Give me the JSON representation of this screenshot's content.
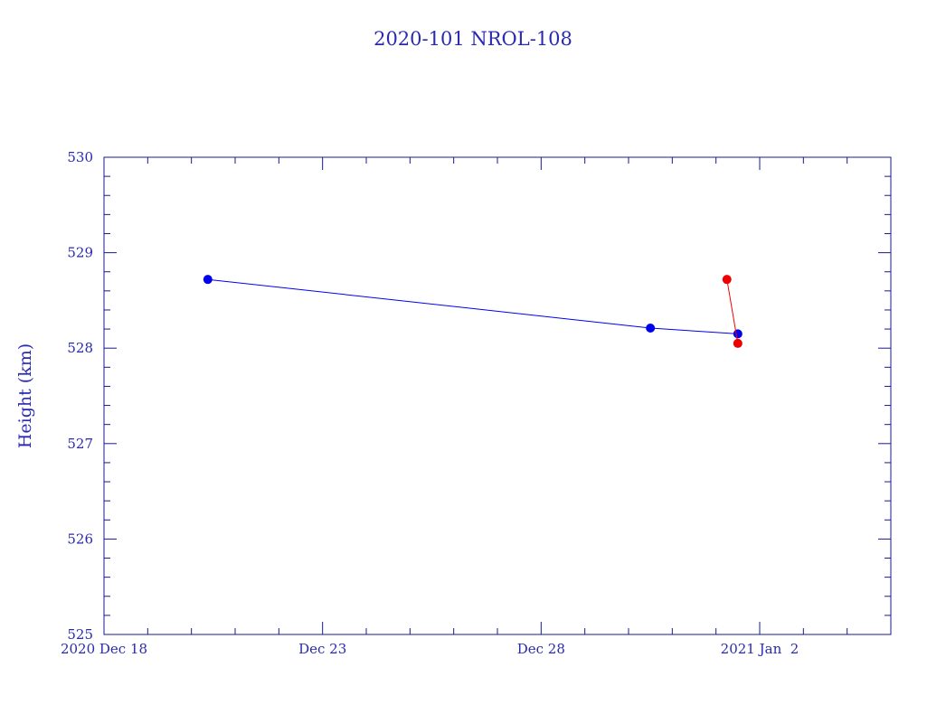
{
  "chart_data": {
    "type": "line",
    "title": "2020-101 NROL-108",
    "ylabel": "Height (km)",
    "xlabel": "",
    "x_axis_type": "date",
    "xlim": [
      "2020-12-18",
      "2021-01-05"
    ],
    "ylim": [
      525,
      530
    ],
    "y_ticks": [
      525,
      526,
      527,
      528,
      529,
      530
    ],
    "y_tick_labels": [
      "525",
      "526",
      "527",
      "528",
      "529",
      "530"
    ],
    "x_ticks": [
      "2020-12-18",
      "2020-12-23",
      "2020-12-28",
      "2021-01-02"
    ],
    "x_tick_labels": [
      "2020 Dec 18",
      "Dec 23",
      "Dec 28",
      "2021 Jan  2"
    ],
    "grid": false,
    "legend": "none",
    "series": [
      {
        "color": "#0000ee",
        "points": [
          {
            "x": "2020-12-20T09:00",
            "y": 528.72
          },
          {
            "x": "2020-12-30T12:00",
            "y": 528.21
          },
          {
            "x": "2021-01-01T12:00",
            "y": 528.15
          }
        ]
      },
      {
        "color": "#ee0000",
        "points": [
          {
            "x": "2021-01-01T06:00",
            "y": 528.72
          },
          {
            "x": "2021-01-01T12:00",
            "y": 528.05
          }
        ]
      }
    ]
  }
}
